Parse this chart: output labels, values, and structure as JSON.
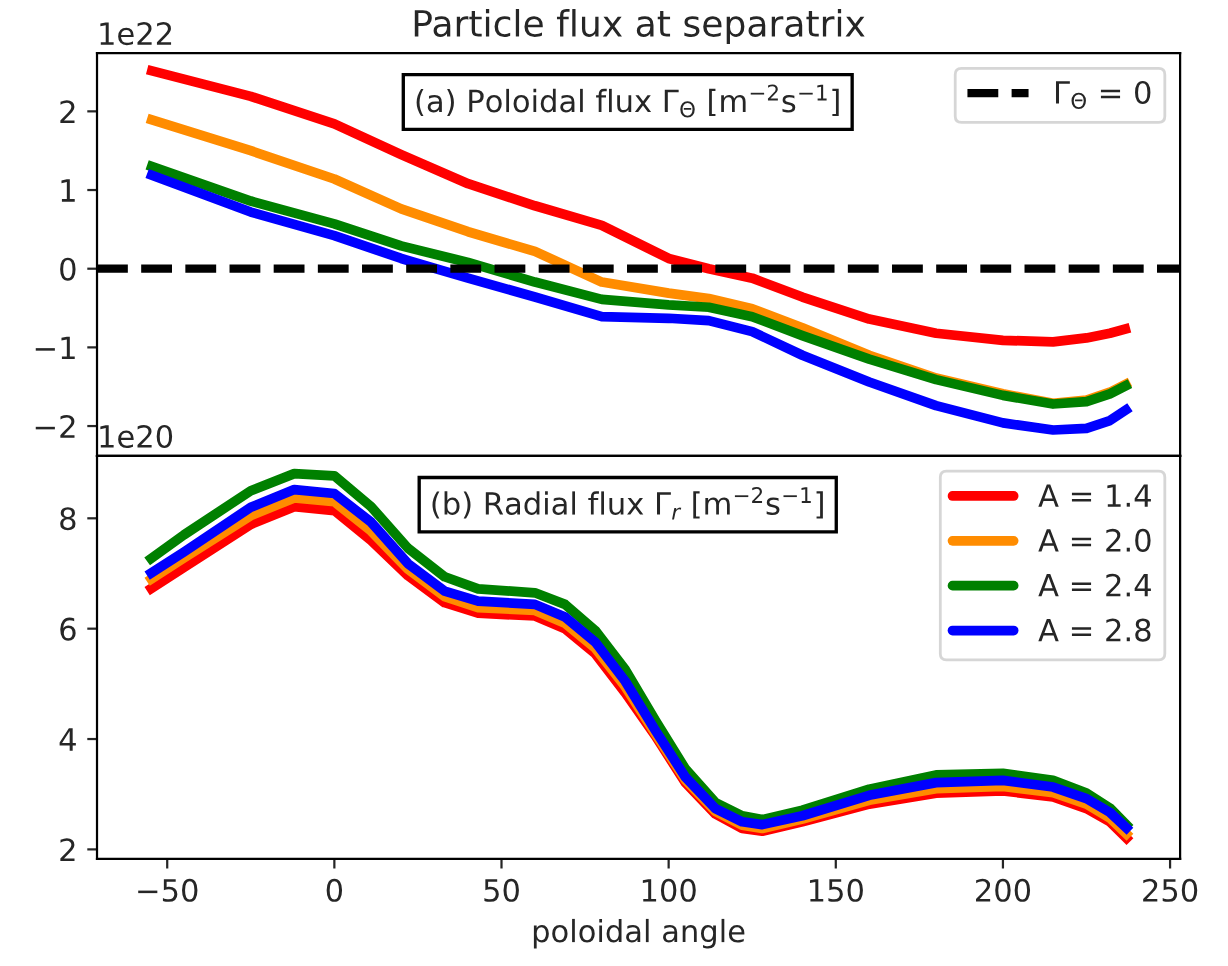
{
  "chart_data": [
    {
      "type": "line",
      "title": "Particle flux at separatrix",
      "x": [
        -56,
        -25,
        0,
        20,
        40,
        60,
        80,
        100,
        112,
        125,
        140,
        160,
        180,
        200,
        215,
        225,
        232,
        238
      ],
      "series": [
        {
          "color": "#ff0000",
          "values": [
            2.53,
            2.19,
            1.84,
            1.45,
            1.08,
            0.8,
            0.55,
            0.13,
            0.0,
            -0.12,
            -0.36,
            -0.64,
            -0.82,
            -0.91,
            -0.93,
            -0.88,
            -0.82,
            -0.75
          ]
        },
        {
          "color": "#ff8c00",
          "values": [
            1.91,
            1.5,
            1.14,
            0.76,
            0.47,
            0.22,
            -0.17,
            -0.31,
            -0.38,
            -0.51,
            -0.75,
            -1.1,
            -1.39,
            -1.59,
            -1.71,
            -1.67,
            -1.57,
            -1.44
          ]
        },
        {
          "color": "#008000",
          "values": [
            1.32,
            0.86,
            0.57,
            0.29,
            0.08,
            -0.17,
            -0.39,
            -0.46,
            -0.49,
            -0.61,
            -0.85,
            -1.15,
            -1.41,
            -1.61,
            -1.72,
            -1.69,
            -1.59,
            -1.46
          ]
        },
        {
          "color": "#0000ff",
          "values": [
            1.21,
            0.72,
            0.42,
            0.13,
            -0.12,
            -0.36,
            -0.61,
            -0.63,
            -0.66,
            -0.8,
            -1.1,
            -1.44,
            -1.74,
            -1.96,
            -2.05,
            -2.03,
            -1.93,
            -1.76
          ]
        }
      ],
      "ref_lines": [
        {
          "axis": "y",
          "value": 0,
          "label": "Γ$_{Θ}$ = 0",
          "color": "#000000",
          "line_style": "dashed"
        }
      ],
      "annotations": [
        "(a) Poloidal flux Γ$_{Θ}$ [m$^{−2}$s$^{−1}$]",
        "1e22"
      ],
      "xlim": [
        -71,
        253
      ],
      "ylim": [
        -2.38,
        2.74
      ],
      "yticks": [
        {
          "value": -2,
          "label": "−2"
        },
        {
          "value": -1,
          "label": "−1"
        },
        0,
        1,
        2
      ],
      "tick_labels": "y",
      "legend": "top right",
      "grid": false,
      "line_style": "solid"
    },
    {
      "type": "line",
      "xlabel": "poloidal angle",
      "x": [
        -56,
        -45,
        -25,
        -12,
        0,
        11,
        22,
        33,
        43,
        60,
        69,
        78,
        87,
        96,
        105,
        114,
        122,
        128,
        140,
        160,
        180,
        200,
        215,
        225,
        232,
        238
      ],
      "series": [
        {
          "name": "A = 1.4",
          "color": "#ff0000",
          "values": [
            6.68,
            7.11,
            7.89,
            8.21,
            8.14,
            7.6,
            6.96,
            6.47,
            6.28,
            6.23,
            6.0,
            5.55,
            4.84,
            4.06,
            3.21,
            2.64,
            2.38,
            2.33,
            2.5,
            2.82,
            3.02,
            3.06,
            2.95,
            2.74,
            2.5,
            2.14
          ]
        },
        {
          "name": "A = 2.0",
          "color": "#ff8c00",
          "values": [
            6.85,
            7.28,
            8.05,
            8.37,
            8.3,
            7.77,
            7.08,
            6.58,
            6.38,
            6.33,
            6.1,
            5.65,
            4.95,
            4.1,
            3.26,
            2.69,
            2.44,
            2.38,
            2.55,
            2.89,
            3.1,
            3.14,
            3.03,
            2.82,
            2.57,
            2.22
          ]
        },
        {
          "name": "A = 2.4",
          "color": "#008000",
          "values": [
            7.22,
            7.7,
            8.5,
            8.81,
            8.77,
            8.21,
            7.46,
            6.94,
            6.72,
            6.65,
            6.44,
            5.97,
            5.26,
            4.34,
            3.46,
            2.85,
            2.61,
            2.54,
            2.71,
            3.09,
            3.35,
            3.38,
            3.25,
            3.02,
            2.75,
            2.38
          ]
        },
        {
          "name": "A = 2.8",
          "color": "#0000ff",
          "values": [
            6.96,
            7.39,
            8.2,
            8.52,
            8.45,
            7.93,
            7.18,
            6.68,
            6.5,
            6.44,
            6.21,
            5.76,
            5.05,
            4.16,
            3.31,
            2.74,
            2.5,
            2.45,
            2.61,
            2.98,
            3.21,
            3.25,
            3.13,
            2.92,
            2.67,
            2.33
          ]
        }
      ],
      "annotations": [
        "(b) Radial flux Γ$_{r}$ [m$^{−2}$s$^{−1}$]",
        "1e20"
      ],
      "xlim": [
        -71,
        253
      ],
      "xticks": [
        {
          "value": -50,
          "label": "−50"
        },
        0,
        50,
        100,
        150,
        200,
        250
      ],
      "ylim": [
        1.83,
        9.13
      ],
      "yticks": [
        2,
        4,
        6,
        8
      ],
      "legend": "top right",
      "grid": false,
      "line_style": "solid"
    }
  ]
}
